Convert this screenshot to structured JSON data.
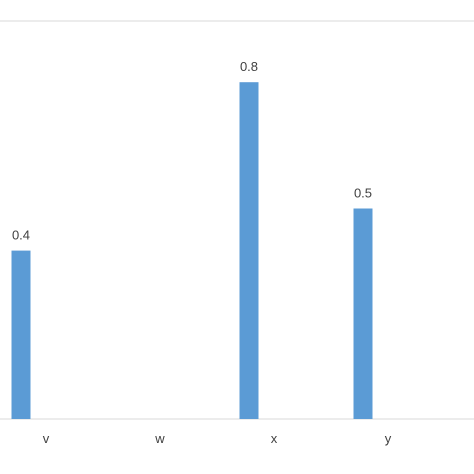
{
  "chart_data": {
    "type": "bar",
    "categories": [
      "v",
      "w",
      "x",
      "y"
    ],
    "values": [
      0.4,
      null,
      0.8,
      0.5
    ],
    "data_labels": [
      "0.4",
      "",
      "0.8",
      "0.5"
    ],
    "title": "",
    "xlabel": "",
    "ylabel": "",
    "ylim": [
      0,
      0.9
    ],
    "grid": false,
    "legend": "none",
    "bar_color": "#5b9bd5",
    "axis_color": "#d9d9d9"
  }
}
